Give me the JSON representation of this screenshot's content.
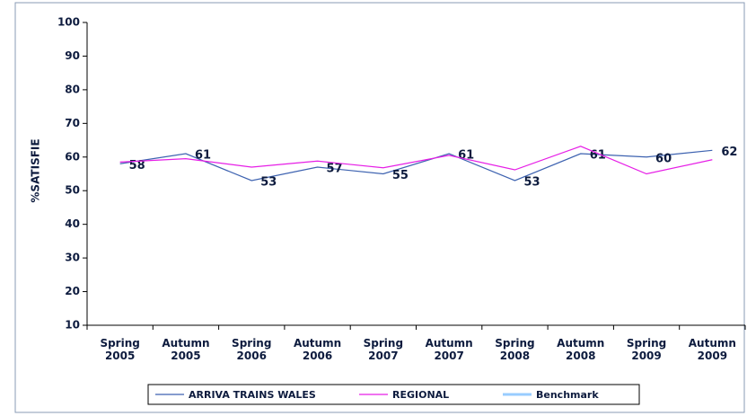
{
  "chart_data": {
    "type": "line",
    "y_label": "%SATISFIE",
    "categories": [
      "Spring 2005",
      "Autumn 2005",
      "Spring 2006",
      "Autumn 2006",
      "Spring 2007",
      "Autumn 2007",
      "Spring 2008",
      "Autumn 2008",
      "Spring 2009",
      "Autumn 2009"
    ],
    "series": [
      {
        "name": "ARRIVA TRAINS WALES",
        "color": "#3d62b0",
        "values": [
          58,
          61,
          53,
          57,
          55,
          61,
          53,
          61,
          60,
          62
        ],
        "data_labels": true
      },
      {
        "name": "REGIONAL",
        "color": "#e61ee6",
        "values": [
          58.5,
          59.5,
          57,
          58.8,
          56.8,
          60.5,
          56.2,
          63.2,
          55,
          59.2
        ]
      },
      {
        "name": "Benchmark",
        "color": "#99ccff",
        "values": [
          null,
          null,
          null,
          null,
          null,
          null,
          null,
          null,
          null,
          null
        ]
      }
    ],
    "ylim": [
      10,
      100
    ],
    "yticks": [
      10,
      20,
      30,
      40,
      50,
      60,
      70,
      80,
      90,
      100
    ],
    "legend": "bottom"
  }
}
